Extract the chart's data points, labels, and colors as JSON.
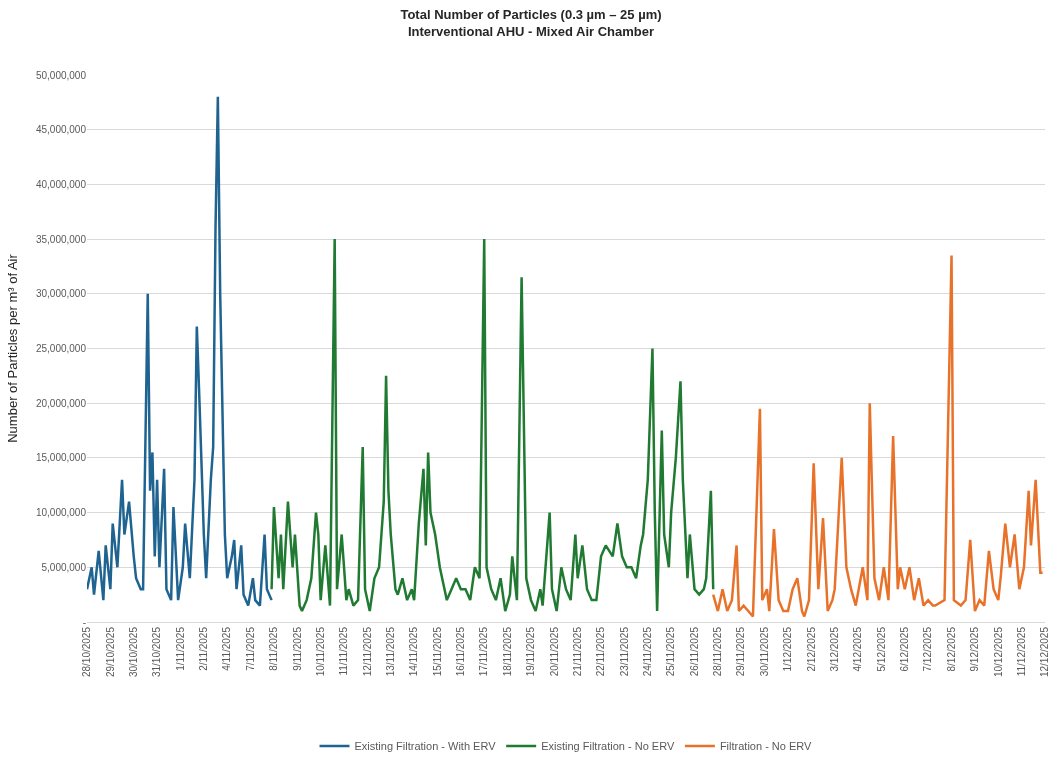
{
  "chart_data": {
    "type": "line",
    "title": "Total Number of Particles (0.3 µm – 25 µm)",
    "subtitle": "Interventional AHU - Mixed Air Chamber",
    "ylabel": "Number of Particles per m³ of Air",
    "categories": [
      "28/10/2025",
      null,
      null,
      null,
      null,
      null,
      null,
      null,
      null,
      null,
      "29/10/2025",
      null,
      null,
      null,
      null,
      null,
      null,
      null,
      null,
      null,
      "30/10/2025",
      null,
      null,
      null,
      null,
      null,
      null,
      null,
      null,
      null,
      "31/10/2025",
      null,
      null,
      null,
      null,
      null,
      null,
      null,
      null,
      null,
      "1/11/2025",
      null,
      null,
      null,
      null,
      null,
      null,
      null,
      null,
      null,
      "2/11/2025",
      null,
      null,
      null,
      null,
      null,
      null,
      null,
      null,
      null,
      "4/11/2025",
      null,
      null,
      null,
      null,
      null,
      null,
      null,
      null,
      null,
      "7/11/2025",
      null,
      null,
      null,
      null,
      null,
      null,
      null,
      null,
      null,
      "8/11/2025",
      null,
      null,
      null,
      null,
      null,
      null,
      null,
      null,
      null,
      "9/11/2025",
      null,
      null,
      null,
      null,
      null,
      null,
      null,
      null,
      null,
      "10/11/2025",
      null,
      null,
      null,
      null,
      null,
      null,
      null,
      null,
      null,
      "11/11/2025",
      null,
      null,
      null,
      null,
      null,
      null,
      null,
      null,
      null,
      "12/11/2025",
      null,
      null,
      null,
      null,
      null,
      null,
      null,
      null,
      null,
      "13/11/2025",
      null,
      null,
      null,
      null,
      null,
      null,
      null,
      null,
      null,
      "14/11/2025",
      null,
      null,
      null,
      null,
      null,
      null,
      null,
      null,
      null,
      "15/11/2025",
      null,
      null,
      null,
      null,
      null,
      null,
      null,
      null,
      null,
      "16/11/2025",
      null,
      null,
      null,
      null,
      null,
      null,
      null,
      null,
      null,
      "17/11/2025",
      null,
      null,
      null,
      null,
      null,
      null,
      null,
      null,
      null,
      "18/11/2025",
      null,
      null,
      null,
      null,
      null,
      null,
      null,
      null,
      null,
      "19/11/2025",
      null,
      null,
      null,
      null,
      null,
      null,
      null,
      null,
      null,
      "20/11/2025",
      null,
      null,
      null,
      null,
      null,
      null,
      null,
      null,
      null,
      "21/11/2025",
      null,
      null,
      null,
      null,
      null,
      null,
      null,
      null,
      null,
      "22/11/2025",
      null,
      null,
      null,
      null,
      null,
      null,
      null,
      null,
      null,
      "23/11/2025",
      null,
      null,
      null,
      null,
      null,
      null,
      null,
      null,
      null,
      "24/11/2025",
      null,
      null,
      null,
      null,
      null,
      null,
      null,
      null,
      null,
      "25/11/2025",
      null,
      null,
      null,
      null,
      null,
      null,
      null,
      null,
      null,
      "26/11/2025",
      null,
      null,
      null,
      null,
      null,
      null,
      null,
      null,
      null,
      "28/11/2025",
      null,
      null,
      null,
      null,
      null,
      null,
      null,
      null,
      null,
      "29/11/2025",
      null,
      null,
      null,
      null,
      null,
      null,
      null,
      null,
      null,
      "30/11/2025",
      null,
      null,
      null,
      null,
      null,
      null,
      null,
      null,
      null,
      "1/12/2025",
      null,
      null,
      null,
      null,
      null,
      null,
      null,
      null,
      null,
      "2/12/2025",
      null,
      null,
      null,
      null,
      null,
      null,
      null,
      null,
      null,
      "3/12/2025",
      null,
      null,
      null,
      null,
      null,
      null,
      null,
      null,
      null,
      "4/12/2025",
      null,
      null,
      null,
      null,
      null,
      null,
      null,
      null,
      null,
      "5/12/2025",
      null,
      null,
      null,
      null,
      null,
      null,
      null,
      null,
      null,
      "6/12/2025",
      null,
      null,
      null,
      null,
      null,
      null,
      null,
      null,
      null,
      "7/12/2025",
      null,
      null,
      null,
      null,
      null,
      null,
      null,
      null,
      null,
      "8/12/2025",
      null,
      null,
      null,
      null,
      null,
      null,
      null,
      null,
      null,
      "9/12/2025",
      null,
      null,
      null,
      null,
      null,
      null,
      null,
      null,
      null,
      "10/12/2025",
      null,
      null,
      null,
      null,
      null,
      null,
      null,
      null,
      null,
      "11/12/2025",
      null,
      null,
      null,
      null,
      null,
      null,
      null,
      null,
      null,
      "12/12/2025"
    ],
    "ylim": [
      0,
      50000000
    ],
    "yticks": [
      {
        "value": 0,
        "label": "-"
      },
      {
        "value": 5000000,
        "label": "5,000,000"
      },
      {
        "value": 10000000,
        "label": "10,000,000"
      },
      {
        "value": 15000000,
        "label": "15,000,000"
      },
      {
        "value": 20000000,
        "label": "20,000,000"
      },
      {
        "value": 25000000,
        "label": "25,000,000"
      },
      {
        "value": 30000000,
        "label": "30,000,000"
      },
      {
        "value": 35000000,
        "label": "35,000,000"
      },
      {
        "value": 40000000,
        "label": "40,000,000"
      },
      {
        "value": 45000000,
        "label": "45,000,000"
      },
      {
        "value": 50000000,
        "label": "50,000,000"
      }
    ],
    "grid": "y",
    "legend": "bottom",
    "marker": "none",
    "line_style": "solid",
    "series": [
      {
        "name": "Existing Filtration - With ERV",
        "color": "#1f6391",
        "values": [
          3000000,
          null,
          5000000,
          2500000,
          null,
          6500000,
          null,
          2000000,
          7000000,
          null,
          3000000,
          9000000,
          null,
          5000000,
          null,
          13000000,
          8000000,
          null,
          11000000,
          null,
          6000000,
          4000000,
          null,
          3000000,
          3000000,
          null,
          30000000,
          12000000,
          15500000,
          6000000,
          13000000,
          5000000,
          null,
          14000000,
          3000000,
          null,
          2000000,
          10500000,
          null,
          2000000,
          null,
          5000000,
          9000000,
          null,
          4000000,
          null,
          13000000,
          27000000,
          21000000,
          null,
          8000000,
          4000000,
          null,
          13000000,
          16000000,
          36000000,
          48000000,
          30000000,
          null,
          8000000,
          4000000,
          null,
          6000000,
          7500000,
          3000000,
          null,
          7000000,
          2500000,
          null,
          1500000,
          null,
          4000000,
          2000000,
          null,
          1500000,
          null,
          8000000,
          3000000,
          null,
          2000000,
          null,
          null,
          null,
          null,
          null,
          null,
          null,
          null,
          null,
          null,
          null,
          null,
          null,
          null,
          null,
          null,
          null,
          null,
          null,
          null,
          null,
          null,
          null,
          null,
          null,
          null,
          null,
          null,
          null,
          null,
          null,
          null,
          null,
          null,
          null,
          null,
          null,
          null,
          null,
          null,
          null,
          null,
          null,
          null,
          null,
          null,
          null,
          null,
          null,
          null,
          null,
          null,
          null,
          null,
          null,
          null,
          null,
          null,
          null,
          null,
          null,
          null,
          null,
          null,
          null,
          null,
          null,
          null,
          null,
          null,
          null,
          null,
          null,
          null,
          null,
          null,
          null,
          null,
          null,
          null,
          null,
          null,
          null,
          null,
          null,
          null,
          null,
          null,
          null,
          null,
          null,
          null,
          null,
          null,
          null,
          null,
          null,
          null,
          null,
          null,
          null,
          null,
          null,
          null,
          null,
          null,
          null,
          null,
          null,
          null,
          null,
          null,
          null,
          null,
          null,
          null,
          null,
          null,
          null,
          null,
          null,
          null,
          null,
          null,
          null,
          null,
          null,
          null,
          null,
          null,
          null,
          null,
          null,
          null,
          null,
          null,
          null,
          null,
          null,
          null,
          null,
          null,
          null,
          null,
          null,
          null,
          null,
          null,
          null,
          null,
          null,
          null,
          null,
          null,
          null,
          null,
          null,
          null,
          null,
          null,
          null,
          null,
          null,
          null,
          null,
          null,
          null,
          null,
          null,
          null,
          null,
          null,
          null,
          null,
          null,
          null,
          null,
          null,
          null,
          null,
          null,
          null,
          null,
          null,
          null,
          null,
          null,
          null,
          null,
          null,
          null,
          null,
          null,
          null,
          null,
          null,
          null,
          null,
          null,
          null,
          null,
          null,
          null,
          null,
          null,
          null,
          null,
          null,
          null,
          null,
          null,
          null,
          null,
          null,
          null,
          null,
          null,
          null,
          null,
          null,
          null,
          null,
          null,
          null,
          null,
          null,
          null,
          null,
          null,
          null,
          null,
          null,
          null,
          null,
          null,
          null,
          null,
          null,
          null,
          null,
          null,
          null,
          null,
          null,
          null,
          null,
          null,
          null,
          null,
          null,
          null,
          null,
          null,
          null,
          null,
          null,
          null,
          null,
          null,
          null,
          null,
          null,
          null,
          null,
          null,
          null,
          null,
          null,
          null,
          null,
          null,
          null,
          null,
          null,
          null,
          null,
          null,
          null,
          null,
          null,
          null,
          null,
          null,
          null,
          null,
          null,
          null,
          null,
          null,
          null,
          null,
          null,
          null,
          null,
          null,
          null,
          null,
          null,
          null,
          null,
          null,
          null,
          null,
          null,
          null,
          null,
          null,
          null,
          null,
          null,
          null,
          null,
          null,
          null,
          null,
          null,
          null,
          null,
          null,
          null,
          null,
          null,
          null,
          null,
          null,
          null,
          null,
          null,
          null,
          null,
          null
        ]
      },
      {
        "name": "Existing Filtration - No ERV",
        "color": "#217a32",
        "values": [
          null,
          null,
          null,
          null,
          null,
          null,
          null,
          null,
          null,
          null,
          null,
          null,
          null,
          null,
          null,
          null,
          null,
          null,
          null,
          null,
          null,
          null,
          null,
          null,
          null,
          null,
          null,
          null,
          null,
          null,
          null,
          null,
          null,
          null,
          null,
          null,
          null,
          null,
          null,
          null,
          null,
          null,
          null,
          null,
          null,
          null,
          null,
          null,
          null,
          null,
          null,
          null,
          null,
          null,
          null,
          null,
          null,
          null,
          null,
          null,
          null,
          null,
          null,
          null,
          null,
          null,
          null,
          null,
          null,
          null,
          null,
          null,
          null,
          null,
          null,
          null,
          null,
          null,
          null,
          3000000,
          10500000,
          null,
          4000000,
          8000000,
          3000000,
          null,
          11000000,
          null,
          5000000,
          8000000,
          null,
          1500000,
          1000000,
          null,
          2000000,
          null,
          4000000,
          null,
          10000000,
          8000000,
          2000000,
          null,
          7000000,
          null,
          1500000,
          null,
          35000000,
          3000000,
          null,
          8000000,
          null,
          2000000,
          3000000,
          null,
          1500000,
          null,
          2000000,
          null,
          16000000,
          3000000,
          null,
          1000000,
          null,
          4000000,
          null,
          5000000,
          null,
          11000000,
          22500000,
          12000000,
          8000000,
          null,
          3000000,
          2500000,
          null,
          4000000,
          null,
          2000000,
          null,
          3000000,
          2000000,
          null,
          9000000,
          null,
          14000000,
          7000000,
          15500000,
          10000000,
          null,
          8000000,
          null,
          5000000,
          null,
          3000000,
          2000000,
          null,
          3000000,
          null,
          4000000,
          null,
          3000000,
          null,
          3000000,
          null,
          2000000,
          null,
          5000000,
          null,
          4000000,
          null,
          35000000,
          5000000,
          null,
          3000000,
          null,
          2000000,
          null,
          4000000,
          null,
          1000000,
          null,
          2500000,
          6000000,
          null,
          2000000,
          null,
          31500000,
          null,
          4000000,
          null,
          2000000,
          null,
          1000000,
          null,
          3000000,
          1500000,
          null,
          null,
          10000000,
          3000000,
          null,
          1000000,
          null,
          5000000,
          null,
          3000000,
          null,
          2000000,
          null,
          8000000,
          4000000,
          null,
          7000000,
          null,
          3000000,
          null,
          2000000,
          null,
          2000000,
          null,
          6000000,
          null,
          7000000,
          null,
          null,
          6000000,
          null,
          9000000,
          null,
          6000000,
          null,
          5000000,
          null,
          5000000,
          null,
          4000000,
          null,
          7000000,
          8000000,
          null,
          13000000,
          null,
          25000000,
          10000000,
          1000000,
          null,
          17500000,
          8000000,
          null,
          5000000,
          10000000,
          null,
          15000000,
          null,
          22000000,
          13000000,
          null,
          4000000,
          8000000,
          null,
          3000000,
          null,
          2500000,
          null,
          3000000,
          4000000,
          null,
          12000000,
          3000000,
          null,
          null,
          null,
          null,
          null,
          null,
          null,
          null,
          null,
          null,
          null,
          null,
          null,
          null,
          null,
          null,
          null,
          null,
          null,
          null,
          null,
          null,
          null,
          null,
          null,
          null,
          null,
          null,
          null,
          null,
          null,
          null,
          null,
          null,
          null,
          null,
          null,
          null,
          null,
          null,
          null,
          null,
          null,
          null,
          null,
          null,
          null,
          null,
          null,
          null,
          null,
          null,
          null,
          null,
          null,
          null,
          null,
          null,
          null,
          null,
          null,
          null,
          null,
          null,
          null,
          null,
          null,
          null,
          null,
          null,
          null,
          null,
          null,
          null,
          null,
          null,
          null,
          null,
          null,
          null,
          null,
          null,
          null,
          null,
          null,
          null,
          null,
          null,
          null,
          null,
          null,
          null,
          null,
          null,
          null,
          null,
          null,
          null,
          null,
          null,
          null,
          null,
          null,
          null,
          null,
          null,
          null,
          null,
          null,
          null,
          null,
          null,
          null,
          null,
          null,
          null,
          null,
          null,
          null,
          null,
          null,
          null,
          null,
          null,
          null,
          null,
          null,
          null,
          null,
          null,
          null,
          null,
          null,
          null,
          null,
          null,
          null,
          null,
          null,
          null,
          null,
          null
        ]
      },
      {
        "name": "Filtration - No ERV",
        "color": "#e8722a",
        "values": [
          null,
          null,
          null,
          null,
          null,
          null,
          null,
          null,
          null,
          null,
          null,
          null,
          null,
          null,
          null,
          null,
          null,
          null,
          null,
          null,
          null,
          null,
          null,
          null,
          null,
          null,
          null,
          null,
          null,
          null,
          null,
          null,
          null,
          null,
          null,
          null,
          null,
          null,
          null,
          null,
          null,
          null,
          null,
          null,
          null,
          null,
          null,
          null,
          null,
          null,
          null,
          null,
          null,
          null,
          null,
          null,
          null,
          null,
          null,
          null,
          null,
          null,
          null,
          null,
          null,
          null,
          null,
          null,
          null,
          null,
          null,
          null,
          null,
          null,
          null,
          null,
          null,
          null,
          null,
          null,
          null,
          null,
          null,
          null,
          null,
          null,
          null,
          null,
          null,
          null,
          null,
          null,
          null,
          null,
          null,
          null,
          null,
          null,
          null,
          null,
          null,
          null,
          null,
          null,
          null,
          null,
          null,
          null,
          null,
          null,
          null,
          null,
          null,
          null,
          null,
          null,
          null,
          null,
          null,
          null,
          null,
          null,
          null,
          null,
          null,
          null,
          null,
          null,
          null,
          null,
          null,
          null,
          null,
          null,
          null,
          null,
          null,
          null,
          null,
          null,
          null,
          null,
          null,
          null,
          null,
          null,
          null,
          null,
          null,
          null,
          null,
          null,
          null,
          null,
          null,
          null,
          null,
          null,
          null,
          null,
          null,
          null,
          null,
          null,
          null,
          null,
          null,
          null,
          null,
          null,
          null,
          null,
          null,
          null,
          null,
          null,
          null,
          null,
          null,
          null,
          null,
          null,
          null,
          null,
          null,
          null,
          null,
          null,
          null,
          null,
          null,
          null,
          null,
          null,
          null,
          null,
          null,
          null,
          null,
          null,
          null,
          null,
          null,
          null,
          null,
          null,
          null,
          null,
          null,
          null,
          null,
          null,
          null,
          null,
          null,
          null,
          null,
          null,
          null,
          null,
          null,
          null,
          null,
          null,
          null,
          null,
          null,
          null,
          null,
          null,
          null,
          null,
          null,
          null,
          null,
          null,
          null,
          null,
          null,
          null,
          null,
          null,
          null,
          null,
          null,
          null,
          null,
          null,
          null,
          null,
          null,
          null,
          null,
          null,
          null,
          null,
          null,
          null,
          null,
          null,
          null,
          null,
          null,
          null,
          null,
          null,
          null,
          null,
          2500000,
          null,
          1000000,
          null,
          3000000,
          null,
          1000000,
          null,
          2000000,
          null,
          7000000,
          1000000,
          null,
          1500000,
          null,
          1000000,
          null,
          500000,
          null,
          null,
          19500000,
          2000000,
          null,
          3000000,
          1000000,
          null,
          8500000,
          null,
          2000000,
          null,
          1000000,
          null,
          1000000,
          null,
          3000000,
          null,
          4000000,
          null,
          1000000,
          500000,
          null,
          2000000,
          null,
          14500000,
          null,
          3000000,
          null,
          9500000,
          null,
          1000000,
          null,
          2000000,
          3000000,
          null,
          null,
          15000000,
          null,
          5000000,
          null,
          3000000,
          null,
          1500000,
          null,
          null,
          5000000,
          null,
          2000000,
          20000000,
          null,
          4000000,
          null,
          2000000,
          null,
          5000000,
          null,
          2000000,
          null,
          17000000,
          null,
          3000000,
          5000000,
          null,
          3000000,
          null,
          5000000,
          null,
          2000000,
          null,
          4000000,
          null,
          1500000,
          null,
          2000000,
          null,
          1500000,
          1500000,
          null,
          null,
          null,
          2000000,
          null,
          null,
          33500000,
          2000000,
          null,
          null,
          1500000,
          null,
          2000000,
          null,
          7500000,
          null,
          1000000,
          null,
          2000000,
          null,
          1500000,
          null,
          6500000,
          null,
          3000000,
          null,
          2000000,
          4000000,
          null,
          9000000,
          null,
          5000000,
          null,
          8000000,
          null,
          3000000,
          null,
          5000000,
          null,
          12000000,
          7000000,
          null,
          13000000,
          null,
          4500000,
          4500000,
          null
        ]
      }
    ]
  }
}
